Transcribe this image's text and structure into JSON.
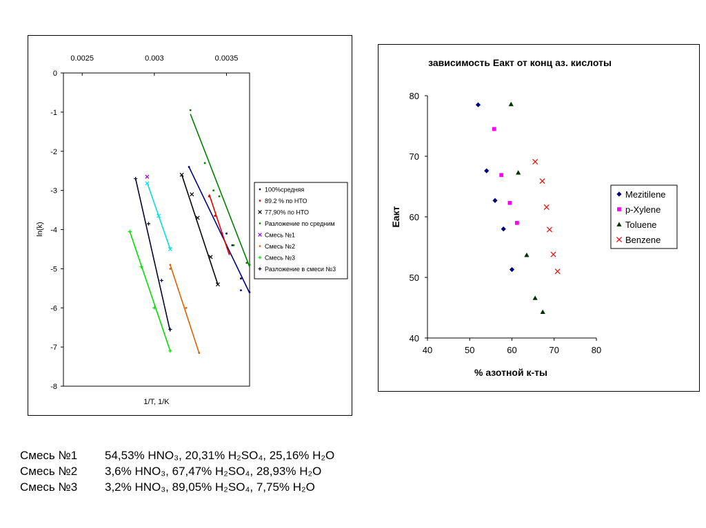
{
  "chart_data": [
    {
      "type": "scatter",
      "title": "",
      "xlabel": "1/T, 1/K",
      "ylabel": "ln(k)",
      "x_ticks": [
        "0.0025",
        "0.003",
        "0.0035"
      ],
      "x_tick_values": [
        0.0025,
        0.003,
        0.0035
      ],
      "y_ticks": [
        "0",
        "-1",
        "-2",
        "-3",
        "-4",
        "-5",
        "-6",
        "-7",
        "-8"
      ],
      "y_tick_values": [
        0,
        -1,
        -2,
        -3,
        -4,
        -5,
        -6,
        -7,
        -8
      ],
      "xlim": [
        0.00237,
        0.00366
      ],
      "ylim": [
        -8,
        0
      ],
      "x_axis_position": "top",
      "legend": "right",
      "series": [
        {
          "name": "100%средняя",
          "color": "#00007f",
          "marker": "dot",
          "x": [
            0.00324,
            0.00338,
            0.0035,
            0.00354,
            0.0036,
            0.0036,
            0.00366
          ],
          "y": [
            -2.4,
            -3.15,
            -4.1,
            -4.4,
            -5.25,
            -5.55,
            -5.6
          ],
          "line": [
            [
              0.00324,
              -2.4
            ],
            [
              0.00366,
              -5.62
            ]
          ]
        },
        {
          "name": "89.2 % по НТО",
          "color": "#e00000",
          "marker": "dot",
          "x": [
            0.00338,
            0.00342,
            0.00347,
            0.00352
          ],
          "y": [
            -3.15,
            -3.65,
            -4.1,
            -4.6
          ],
          "line": [
            [
              0.00338,
              -3.1
            ],
            [
              0.00352,
              -4.65
            ]
          ]
        },
        {
          "name": "77,90% по НТО",
          "color": "#000000",
          "marker": "x",
          "x": [
            0.00319,
            0.00326,
            0.0033,
            0.00339,
            0.00344
          ],
          "y": [
            -2.6,
            -3.1,
            -3.7,
            -4.7,
            -5.4
          ],
          "line": [
            [
              0.00319,
              -2.6
            ],
            [
              0.00344,
              -5.4
            ]
          ]
        },
        {
          "name": "Разложение по средним",
          "color": "#008000",
          "marker": "dot",
          "x": [
            0.00325,
            0.00335,
            0.00341,
            0.00345,
            0.00355,
            0.00364,
            0.00366
          ],
          "y": [
            -0.95,
            -2.3,
            -3.0,
            -3.15,
            -4.4,
            -4.85,
            -4.9
          ],
          "line": [
            [
              0.00325,
              -1.05
            ],
            [
              0.00366,
              -4.95
            ]
          ]
        },
        {
          "name": "Смесь №1",
          "color": "#9900cc",
          "marker": "x",
          "x": [
            0.00295
          ],
          "y": [
            -2.65
          ],
          "line": []
        },
        {
          "name": "Смесь №2",
          "color": "#e06000",
          "marker": "dot",
          "x": [
            0.00311,
            0.00311,
            0.00322,
            0.00331
          ],
          "y": [
            -4.9,
            -5.0,
            -6.0,
            -7.15
          ],
          "line": [
            [
              0.00311,
              -4.9
            ],
            [
              0.00331,
              -7.15
            ]
          ]
        },
        {
          "name": "Смесь №3",
          "color": "#00e000",
          "marker": "plus",
          "x": [
            0.00283,
            0.00291,
            0.003,
            0.00311
          ],
          "y": [
            -4.05,
            -4.95,
            -6.0,
            -7.1
          ],
          "line": [
            [
              0.00283,
              -4.05
            ],
            [
              0.00311,
              -7.1
            ]
          ]
        },
        {
          "name": "Разложение в смеси №3",
          "color": "#000033",
          "marker": "plus",
          "x": [
            0.00287,
            0.00296,
            0.00305,
            0.00311
          ],
          "y": [
            -2.7,
            -3.85,
            -5.3,
            -6.55
          ],
          "line": [
            [
              0.00287,
              -2.7
            ],
            [
              0.00311,
              -6.6
            ]
          ]
        },
        {
          "name": "",
          "color": "#00e0e0",
          "marker": "x",
          "x": [
            0.00295,
            0.00303,
            0.00311
          ],
          "y": [
            -2.82,
            -3.65,
            -4.5
          ],
          "line": [
            [
              0.00295,
              -2.8
            ],
            [
              0.00311,
              -4.5
            ]
          ]
        }
      ]
    },
    {
      "type": "scatter",
      "title": "зависимость Еакт от конц аз. кислоты",
      "xlabel": "% азотной к-ты",
      "ylabel": "Еакт",
      "x_ticks": [
        "40",
        "50",
        "60",
        "70",
        "80"
      ],
      "x_tick_values": [
        40,
        50,
        60,
        70,
        80
      ],
      "y_ticks": [
        "40",
        "50",
        "60",
        "70",
        "80"
      ],
      "y_tick_values": [
        40,
        50,
        60,
        70,
        80
      ],
      "xlim": [
        40,
        80
      ],
      "ylim": [
        40,
        80
      ],
      "legend": "right",
      "series": [
        {
          "name": "Mezitilene",
          "color": "#000080",
          "marker": "diamond",
          "x": [
            52,
            54,
            56,
            58,
            60
          ],
          "y": [
            78.5,
            67.6,
            62.7,
            58.0,
            51.3
          ]
        },
        {
          "name": "p-Xylene",
          "color": "#ff00ff",
          "marker": "square",
          "x": [
            55.8,
            57.5,
            59.5,
            61.2
          ],
          "y": [
            74.5,
            66.9,
            62.3,
            59.0
          ]
        },
        {
          "name": "Toluene",
          "color": "#003300",
          "marker": "triangle",
          "x": [
            59.8,
            61.5,
            63.5,
            65.5,
            67.3
          ],
          "y": [
            78.6,
            67.3,
            53.7,
            46.6,
            44.3
          ]
        },
        {
          "name": "Benzene",
          "color": "#ff0000",
          "marker": "x",
          "x": [
            65.5,
            67.2,
            68.2,
            68.9,
            69.8,
            70.8
          ],
          "y": [
            69.1,
            65.9,
            61.6,
            57.9,
            53.8,
            51.0
          ]
        }
      ]
    }
  ],
  "notes": [
    {
      "name": "Смесь №1",
      "composition": "54,53% HNO₃, 20,31% H₂SO₄, 25,16% H₂O"
    },
    {
      "name": "Смесь №2",
      "composition": "3,6% HNO₃, 67,47% H₂SO₄, 28,93% H₂O"
    },
    {
      "name": "Смесь №3",
      "composition": "3,2% HNO₃, 89,05% H₂SO₄, 7,75% H₂O"
    }
  ]
}
